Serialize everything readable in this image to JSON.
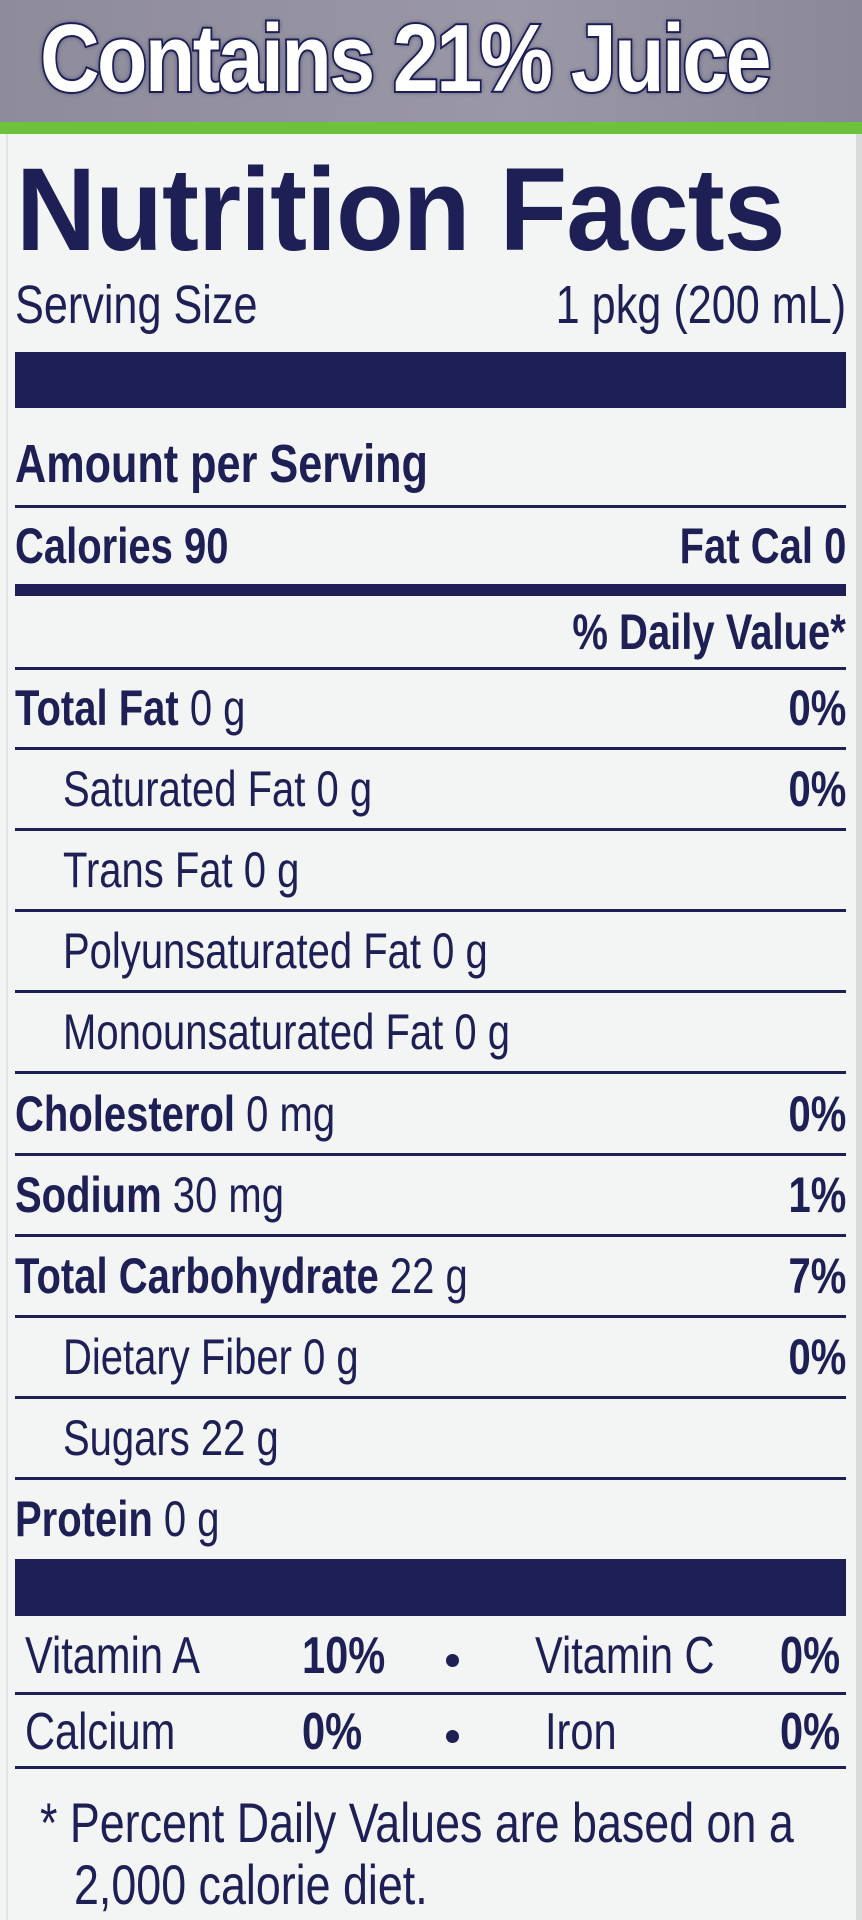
{
  "banner": "Contains 21% Juice",
  "title": "Nutrition Facts",
  "serving_size": {
    "label": "Serving Size",
    "value": "1 pkg (200 mL)"
  },
  "amount_per_serving": "Amount per Serving",
  "calories": {
    "label": "Calories",
    "value": "90",
    "fat_cal_label": "Fat Cal",
    "fat_cal_value": "0"
  },
  "daily_value_header": "% Daily Value*",
  "nutrients": [
    {
      "label": "Total Fat",
      "amount": "0 g",
      "dv": "0%"
    },
    {
      "label": "Saturated Fat",
      "amount": "0 g",
      "dv": "0%"
    },
    {
      "label": "Trans Fat",
      "amount": "0 g",
      "dv": ""
    },
    {
      "label": "Polyunsaturated Fat",
      "amount": "0 g",
      "dv": ""
    },
    {
      "label": "Monounsaturated Fat",
      "amount": "0 g",
      "dv": ""
    },
    {
      "label": "Cholesterol",
      "amount": "0 mg",
      "dv": "0%"
    },
    {
      "label": "Sodium",
      "amount": "30 mg",
      "dv": "1%"
    },
    {
      "label": "Total Carbohydrate",
      "amount": "22 g",
      "dv": "7%"
    },
    {
      "label": "Dietary Fiber",
      "amount": "0 g",
      "dv": "0%"
    },
    {
      "label": "Sugars",
      "amount": "22 g",
      "dv": ""
    },
    {
      "label": "Protein",
      "amount": "0 g",
      "dv": ""
    }
  ],
  "vitamins": [
    {
      "label": "Vitamin A",
      "dv": "10%"
    },
    {
      "label": "Vitamin C",
      "dv": "0%"
    },
    {
      "label": "Calcium",
      "dv": "0%"
    },
    {
      "label": "Iron",
      "dv": "0%"
    }
  ],
  "footnote": {
    "line1": "* Percent Daily Values are based on a",
    "line2": "2,000 calorie diet."
  },
  "colors": {
    "ink": "#1d1f55",
    "banner_bg": "#8e8b9b",
    "green_stripe": "#6cc23c",
    "panel": "#f3f4f4"
  }
}
